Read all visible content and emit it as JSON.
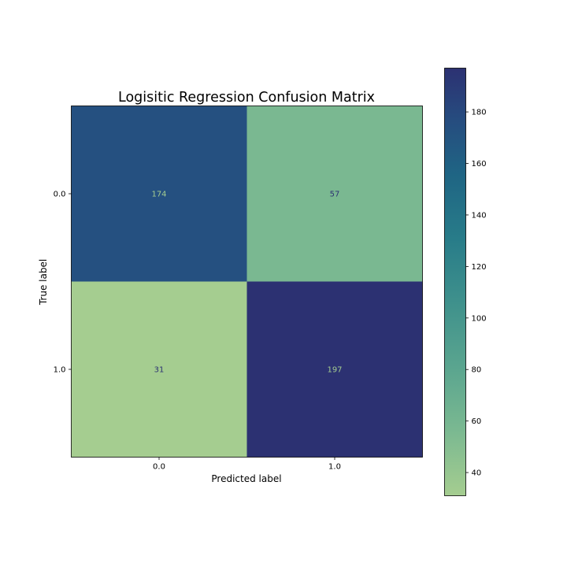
{
  "chart_data": {
    "type": "heatmap",
    "title": "Logisitic Regression Confusion Matrix",
    "xlabel": "Predicted label",
    "ylabel": "True label",
    "x_categories": [
      "0.0",
      "1.0"
    ],
    "y_categories": [
      "0.0",
      "1.0"
    ],
    "matrix": [
      [
        174,
        57
      ],
      [
        31,
        197
      ]
    ],
    "colorbar": {
      "min": 31,
      "max": 197,
      "ticks": [
        40,
        60,
        80,
        100,
        120,
        140,
        160,
        180
      ],
      "colormap": "crest",
      "color_low": "#a5cd90",
      "color_high": "#2c3172"
    },
    "text_colors": {
      "on_dark": "#a5cd90",
      "on_light": "#2c3172"
    },
    "grid": false,
    "legend": "colorbar-right"
  }
}
